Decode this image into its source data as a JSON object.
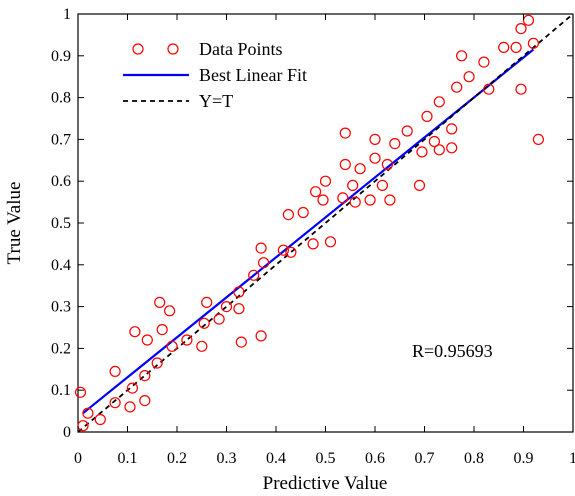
{
  "chart_data": {
    "type": "scatter",
    "xlabel": "Predictive Value",
    "ylabel": "True Value",
    "xlim": [
      0,
      1
    ],
    "ylim": [
      0,
      1
    ],
    "xticks": [
      "0",
      "0.1",
      "0.2",
      "0.3",
      "0.4",
      "0.5",
      "0.6",
      "0.7",
      "0.8",
      "0.9",
      "1"
    ],
    "yticks": [
      "0",
      "0.1",
      "0.2",
      "0.3",
      "0.4",
      "0.5",
      "0.6",
      "0.7",
      "0.8",
      "0.9",
      "1"
    ],
    "grid": false,
    "legend_position": "top-left",
    "annotation": "R=0.95693",
    "series": [
      {
        "name": "Data Points",
        "kind": "scatter",
        "color": "#ff0000",
        "points": [
          [
            0.005,
            0.095
          ],
          [
            0.01,
            0.015
          ],
          [
            0.02,
            0.045
          ],
          [
            0.045,
            0.03
          ],
          [
            0.075,
            0.07
          ],
          [
            0.075,
            0.145
          ],
          [
            0.105,
            0.06
          ],
          [
            0.11,
            0.105
          ],
          [
            0.115,
            0.24
          ],
          [
            0.135,
            0.075
          ],
          [
            0.135,
            0.135
          ],
          [
            0.14,
            0.22
          ],
          [
            0.16,
            0.165
          ],
          [
            0.165,
            0.31
          ],
          [
            0.17,
            0.245
          ],
          [
            0.185,
            0.29
          ],
          [
            0.19,
            0.205
          ],
          [
            0.22,
            0.22
          ],
          [
            0.25,
            0.205
          ],
          [
            0.255,
            0.26
          ],
          [
            0.26,
            0.31
          ],
          [
            0.285,
            0.27
          ],
          [
            0.3,
            0.3
          ],
          [
            0.325,
            0.295
          ],
          [
            0.325,
            0.335
          ],
          [
            0.33,
            0.215
          ],
          [
            0.355,
            0.375
          ],
          [
            0.37,
            0.23
          ],
          [
            0.37,
            0.44
          ],
          [
            0.375,
            0.405
          ],
          [
            0.415,
            0.435
          ],
          [
            0.425,
            0.52
          ],
          [
            0.43,
            0.43
          ],
          [
            0.455,
            0.525
          ],
          [
            0.475,
            0.45
          ],
          [
            0.48,
            0.575
          ],
          [
            0.495,
            0.555
          ],
          [
            0.5,
            0.6
          ],
          [
            0.51,
            0.455
          ],
          [
            0.535,
            0.56
          ],
          [
            0.54,
            0.64
          ],
          [
            0.54,
            0.715
          ],
          [
            0.555,
            0.59
          ],
          [
            0.56,
            0.55
          ],
          [
            0.57,
            0.63
          ],
          [
            0.59,
            0.555
          ],
          [
            0.6,
            0.7
          ],
          [
            0.6,
            0.655
          ],
          [
            0.615,
            0.59
          ],
          [
            0.625,
            0.64
          ],
          [
            0.63,
            0.555
          ],
          [
            0.64,
            0.69
          ],
          [
            0.665,
            0.72
          ],
          [
            0.69,
            0.59
          ],
          [
            0.695,
            0.67
          ],
          [
            0.705,
            0.755
          ],
          [
            0.72,
            0.695
          ],
          [
            0.73,
            0.675
          ],
          [
            0.73,
            0.79
          ],
          [
            0.755,
            0.725
          ],
          [
            0.755,
            0.68
          ],
          [
            0.765,
            0.825
          ],
          [
            0.775,
            0.9
          ],
          [
            0.79,
            0.85
          ],
          [
            0.82,
            0.885
          ],
          [
            0.83,
            0.82
          ],
          [
            0.86,
            0.92
          ],
          [
            0.885,
            0.92
          ],
          [
            0.895,
            0.82
          ],
          [
            0.895,
            0.965
          ],
          [
            0.91,
            0.985
          ],
          [
            0.92,
            0.93
          ],
          [
            0.93,
            0.7
          ]
        ]
      },
      {
        "name": "Best Linear Fit",
        "kind": "line",
        "color": "#0000ff",
        "dash": "solid",
        "x": [
          0.01,
          0.92
        ],
        "y": [
          0.045,
          0.915
        ]
      },
      {
        "name": "Y=T",
        "kind": "line",
        "color": "#000000",
        "dash": "dashed",
        "x": [
          0,
          1
        ],
        "y": [
          0,
          1
        ]
      }
    ]
  }
}
